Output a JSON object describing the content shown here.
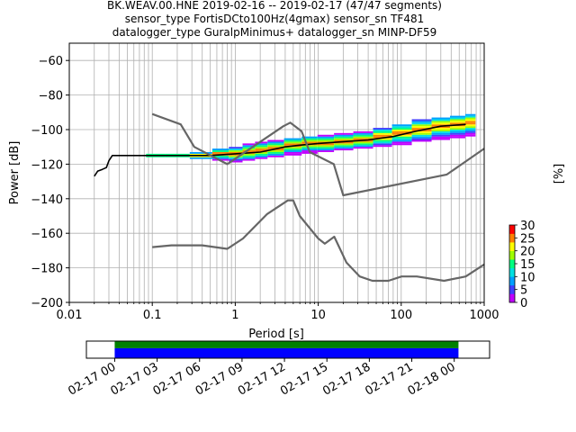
{
  "title_lines": [
    "BK.WEAV.00.HNE   2019-02-16 -- 2019-02-17  (47/47 segments)",
    "sensor_type FortisDCto100Hz(4gmax) sensor_sn TF481",
    "datalogger_type GuralpMinimus+ datalogger_sn MINP-DF59"
  ],
  "chart_data": [
    {
      "type": "heatmap",
      "xlabel": "Period [s]",
      "ylabel": "Power [dB]",
      "xscale": "log",
      "xlim": [
        0.01,
        1000
      ],
      "ylim": [
        -200,
        -50
      ],
      "x_ticks": [
        0.01,
        0.1,
        1,
        10,
        100,
        1000
      ],
      "x_tick_labels": [
        "0.01",
        "0.1",
        "1",
        "10",
        "100",
        "1000"
      ],
      "y_ticks": [
        -200,
        -180,
        -160,
        -140,
        -120,
        -100,
        -80,
        -60
      ],
      "y_tick_labels": [
        "−200",
        "−180",
        "−160",
        "−140",
        "−120",
        "−100",
        "−80",
        "−60"
      ],
      "grid": true,
      "colorbar": {
        "label": "[%]",
        "ticks": [
          0,
          5,
          10,
          15,
          20,
          25,
          30
        ],
        "tick_labels": [
          "0",
          "5",
          "10",
          "15",
          "20",
          "25",
          "30"
        ],
        "range": [
          0,
          30
        ],
        "colors": [
          "#ffffff",
          "#c000ff",
          "#4040ff",
          "#00a0ff",
          "#00e0e0",
          "#00ff80",
          "#a0ff00",
          "#ffff00",
          "#ff8000",
          "#ff0000"
        ]
      },
      "series": [
        {
          "role": "mean",
          "color": "#000000",
          "points": [
            [
              0.02,
              -127
            ],
            [
              0.022,
              -124
            ],
            [
              0.025,
              -123
            ],
            [
              0.028,
              -122
            ],
            [
              0.03,
              -118
            ],
            [
              0.033,
              -115
            ],
            [
              0.05,
              -115
            ],
            [
              0.1,
              -115
            ],
            [
              0.2,
              -115
            ],
            [
              0.3,
              -115
            ],
            [
              0.5,
              -115
            ],
            [
              1,
              -114
            ],
            [
              2,
              -113
            ],
            [
              4,
              -110
            ],
            [
              6,
              -109
            ],
            [
              10,
              -108
            ],
            [
              20,
              -107
            ],
            [
              40,
              -106
            ],
            [
              80,
              -104
            ],
            [
              150,
              -101
            ],
            [
              300,
              -98
            ],
            [
              600,
              -97
            ]
          ]
        },
        {
          "role": "new-high-noise-model",
          "color": "#666666",
          "points": [
            [
              0.1,
              -91
            ],
            [
              0.22,
              -97
            ],
            [
              0.32,
              -110
            ],
            [
              0.8,
              -120
            ],
            [
              3.8,
              -98
            ],
            [
              4.6,
              -96
            ],
            [
              6.3,
              -101
            ],
            [
              7.9,
              -113
            ],
            [
              15.4,
              -120
            ],
            [
              20,
              -138
            ],
            [
              354.8,
              -126
            ],
            [
              1000,
              -111
            ]
          ]
        },
        {
          "role": "new-low-noise-model",
          "color": "#666666",
          "points": [
            [
              0.1,
              -168
            ],
            [
              0.17,
              -167
            ],
            [
              0.4,
              -167
            ],
            [
              0.8,
              -169
            ],
            [
              1.24,
              -163
            ],
            [
              2.4,
              -149
            ],
            [
              4.3,
              -141
            ],
            [
              5,
              -141
            ],
            [
              6,
              -150
            ],
            [
              10,
              -163
            ],
            [
              12,
              -166
            ],
            [
              15.6,
              -162
            ],
            [
              21.9,
              -177
            ],
            [
              31.6,
              -185
            ],
            [
              45,
              -187.5
            ],
            [
              70,
              -187.5
            ],
            [
              101,
              -185
            ],
            [
              154,
              -185
            ],
            [
              328,
              -187.5
            ],
            [
              600,
              -185
            ],
            [
              1000,
              -178
            ]
          ]
        }
      ],
      "density": [
        {
          "period": 0.1,
          "lo": -116,
          "hi": -114,
          "peak": -115
        },
        {
          "period": 0.2,
          "lo": -116,
          "hi": -114,
          "peak": -115
        },
        {
          "period": 0.4,
          "lo": -117,
          "hi": -113,
          "peak": -115
        },
        {
          "period": 0.7,
          "lo": -118,
          "hi": -111,
          "peak": -114
        },
        {
          "period": 1,
          "lo": -119,
          "hi": -110,
          "peak": -114
        },
        {
          "period": 1.5,
          "lo": -118,
          "hi": -108,
          "peak": -113
        },
        {
          "period": 2,
          "lo": -117,
          "hi": -107,
          "peak": -112
        },
        {
          "period": 3,
          "lo": -116,
          "hi": -106,
          "peak": -111
        },
        {
          "period": 5,
          "lo": -115,
          "hi": -105,
          "peak": -109
        },
        {
          "period": 8,
          "lo": -114,
          "hi": -104,
          "peak": -108
        },
        {
          "period": 12,
          "lo": -113,
          "hi": -103,
          "peak": -108
        },
        {
          "period": 20,
          "lo": -112,
          "hi": -102,
          "peak": -107
        },
        {
          "period": 35,
          "lo": -111,
          "hi": -101,
          "peak": -106
        },
        {
          "period": 60,
          "lo": -110,
          "hi": -99,
          "peak": -104
        },
        {
          "period": 100,
          "lo": -109,
          "hi": -97,
          "peak": -102
        },
        {
          "period": 180,
          "lo": -107,
          "hi": -94,
          "peak": -100
        },
        {
          "period": 300,
          "lo": -106,
          "hi": -93,
          "peak": -98
        },
        {
          "period": 500,
          "lo": -105,
          "hi": -92,
          "peak": -97
        },
        {
          "period": 700,
          "lo": -104,
          "hi": -91,
          "peak": -96
        }
      ]
    },
    {
      "type": "timeline",
      "x_tick_labels": [
        "02-17 00",
        "02-17 03",
        "02-17 06",
        "02-17 09",
        "02-17 12",
        "02-17 15",
        "02-17 18",
        "02-17 21",
        "02-18 00"
      ],
      "xlim_hours": [
        -2,
        26.5
      ],
      "bars": [
        {
          "role": "data-available",
          "color": "#008000",
          "start_hour": 0,
          "end_hour": 24.3
        },
        {
          "role": "psd-used",
          "color": "#0000ff",
          "start_hour": 0,
          "end_hour": 24.3
        }
      ]
    }
  ]
}
